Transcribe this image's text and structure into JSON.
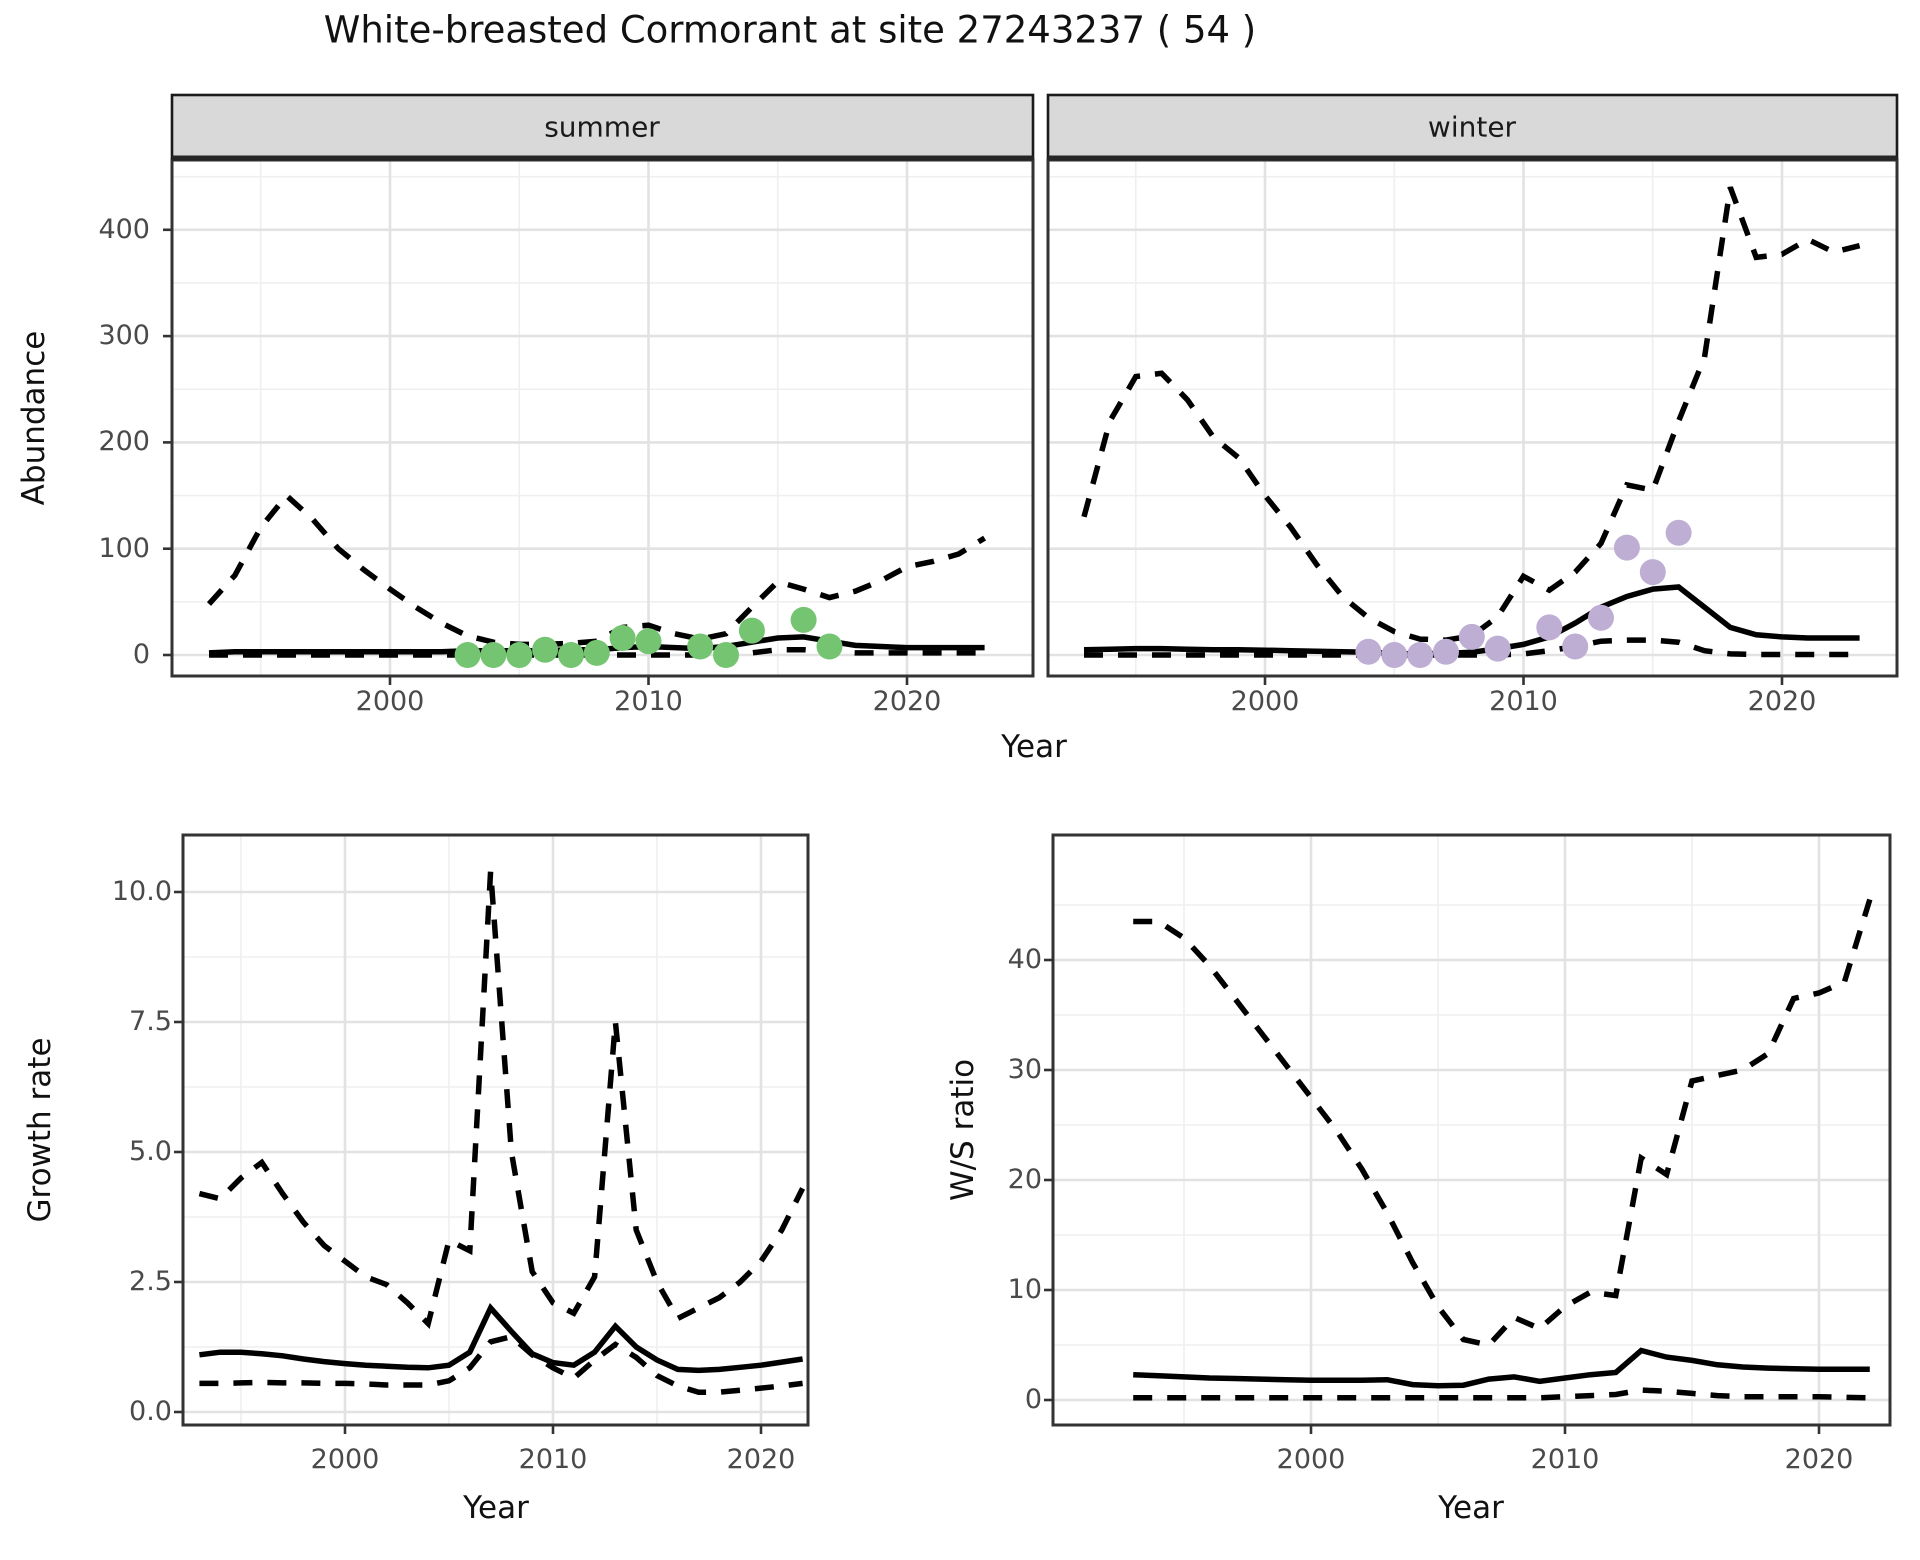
{
  "title": "White-breasted Cormorant at site 27243237 ( 54 )",
  "facets": [
    "summer",
    "winter"
  ],
  "axes": {
    "x_label": "Year",
    "y_abundance": "Abundance",
    "y_growth": "Growth rate",
    "y_ws": "W/S ratio",
    "x_ticks": [
      "2000",
      "2010",
      "2020"
    ],
    "abundance_ticks": [
      "0",
      "100",
      "200",
      "300",
      "400"
    ],
    "growth_ticks": [
      "0.0",
      "2.5",
      "5.0",
      "7.5",
      "10.0"
    ],
    "ws_ticks": [
      "0",
      "10",
      "20",
      "30",
      "40"
    ]
  },
  "colors": {
    "summer_points": "#74c471",
    "winter_points": "#beaed4",
    "line": "#000000",
    "grid_major": "#e2e2e2",
    "grid_minor": "#efefef",
    "strip_bg": "#d9d9d9",
    "panel_border": "#333333",
    "axis_text": "#4a4a4a"
  },
  "chart_data": [
    {
      "type": "line",
      "panel": "summer",
      "facet": "summer",
      "xlabel": "Year",
      "ylabel": "Abundance",
      "ylim": [
        0,
        460
      ],
      "x": [
        1993,
        1994,
        1995,
        1996,
        1997,
        1998,
        1999,
        2000,
        2001,
        2002,
        2003,
        2004,
        2005,
        2006,
        2007,
        2008,
        2009,
        2010,
        2011,
        2012,
        2013,
        2014,
        2015,
        2016,
        2017,
        2018,
        2019,
        2020,
        2021,
        2022,
        2023
      ],
      "series": [
        {
          "name": "upper-ci",
          "style": "dashed",
          "values": [
            48,
            75,
            120,
            150,
            128,
            100,
            80,
            62,
            45,
            30,
            18,
            12,
            10,
            10,
            11,
            13,
            26,
            28,
            20,
            15,
            20,
            45,
            69,
            62,
            54,
            60,
            70,
            83,
            88,
            95,
            110
          ]
        },
        {
          "name": "median",
          "style": "solid",
          "values": [
            2,
            3,
            3,
            3,
            3,
            3,
            3,
            3,
            3,
            3,
            4,
            4,
            4,
            4,
            5,
            5,
            7,
            8,
            7,
            6,
            8,
            12,
            16,
            17,
            13,
            9,
            8,
            7,
            7,
            7,
            7
          ]
        },
        {
          "name": "lower-ci",
          "style": "dashed",
          "values": [
            0,
            0,
            0,
            0,
            0,
            0,
            0,
            0,
            0,
            0,
            0,
            0,
            0,
            0,
            0,
            0,
            0,
            0,
            0,
            0,
            0,
            2,
            5,
            5,
            3,
            2,
            2,
            2,
            2,
            2,
            2
          ]
        }
      ],
      "points": {
        "name": "observed-counts",
        "color": "#74c471",
        "x": [
          2003,
          2004,
          2005,
          2006,
          2007,
          2008,
          2009,
          2010,
          2012,
          2013,
          2014,
          2016,
          2017
        ],
        "y": [
          0,
          0,
          0,
          5,
          0,
          2,
          16,
          13,
          8,
          0,
          23,
          33,
          8
        ]
      }
    },
    {
      "type": "line",
      "panel": "winter",
      "facet": "winter",
      "xlabel": "Year",
      "ylabel": "Abundance",
      "ylim": [
        0,
        460
      ],
      "x": [
        1993,
        1994,
        1995,
        1996,
        1997,
        1998,
        1999,
        2000,
        2001,
        2002,
        2003,
        2004,
        2005,
        2006,
        2007,
        2008,
        2009,
        2010,
        2011,
        2012,
        2013,
        2014,
        2015,
        2016,
        2017,
        2018,
        2019,
        2020,
        2021,
        2022,
        2023
      ],
      "series": [
        {
          "name": "upper-ci",
          "style": "dashed",
          "values": [
            130,
            220,
            262,
            265,
            240,
            205,
            185,
            150,
            120,
            85,
            55,
            35,
            22,
            15,
            14,
            18,
            36,
            74,
            61,
            78,
            105,
            160,
            155,
            220,
            280,
            440,
            374,
            377,
            391,
            379,
            385
          ]
        },
        {
          "name": "median",
          "style": "solid",
          "values": [
            5,
            5.5,
            6,
            6,
            5.5,
            5,
            5,
            4.5,
            4,
            3.5,
            3,
            2.5,
            1.5,
            1,
            1.5,
            2.5,
            6,
            10,
            17,
            30,
            45,
            55,
            62,
            64,
            45,
            26,
            19,
            17,
            16,
            16,
            16
          ]
        },
        {
          "name": "lower-ci",
          "style": "dashed",
          "values": [
            0,
            0,
            0,
            0,
            0,
            0,
            0,
            0,
            0,
            0,
            0,
            0,
            0,
            0,
            0,
            0,
            0,
            1,
            4,
            8,
            13,
            14,
            14,
            12,
            4,
            1,
            0.5,
            0.5,
            0.5,
            0.5,
            0.5
          ]
        }
      ],
      "points": {
        "name": "observed-counts",
        "color": "#beaed4",
        "x": [
          2004,
          2005,
          2006,
          2007,
          2008,
          2009,
          2011,
          2012,
          2013,
          2014,
          2015,
          2016
        ],
        "y": [
          3,
          0,
          0,
          3,
          17,
          6,
          26,
          8,
          35,
          101,
          78,
          115
        ]
      }
    },
    {
      "type": "line",
      "panel": "growth",
      "xlabel": "Year",
      "ylabel": "Growth rate",
      "ylim": [
        0,
        11
      ],
      "x": [
        1993,
        1994,
        1995,
        1996,
        1997,
        1998,
        1999,
        2000,
        2001,
        2002,
        2003,
        2004,
        2005,
        2006,
        2007,
        2008,
        2009,
        2010,
        2011,
        2012,
        2013,
        2014,
        2015,
        2016,
        2017,
        2018,
        2019,
        2020,
        2021,
        2022
      ],
      "series": [
        {
          "name": "upper-ci",
          "style": "dashed",
          "values": [
            4.2,
            4.1,
            4.5,
            4.8,
            4.2,
            3.65,
            3.2,
            2.9,
            2.6,
            2.45,
            2.1,
            1.7,
            3.3,
            3.1,
            10.4,
            5.0,
            2.7,
            2.1,
            1.9,
            2.6,
            7.5,
            3.5,
            2.5,
            1.8,
            2.0,
            2.2,
            2.5,
            2.9,
            3.5,
            4.3
          ]
        },
        {
          "name": "median",
          "style": "solid",
          "values": [
            1.1,
            1.15,
            1.15,
            1.12,
            1.08,
            1.02,
            0.97,
            0.93,
            0.9,
            0.88,
            0.86,
            0.85,
            0.9,
            1.15,
            2.0,
            1.55,
            1.12,
            0.95,
            0.9,
            1.15,
            1.65,
            1.25,
            1.0,
            0.82,
            0.8,
            0.82,
            0.86,
            0.9,
            0.96,
            1.02
          ]
        },
        {
          "name": "lower-ci",
          "style": "dashed",
          "values": [
            0.55,
            0.55,
            0.56,
            0.57,
            0.56,
            0.56,
            0.55,
            0.55,
            0.54,
            0.52,
            0.52,
            0.52,
            0.6,
            0.85,
            1.35,
            1.45,
            1.1,
            0.85,
            0.65,
            1.0,
            1.3,
            1.05,
            0.7,
            0.5,
            0.38,
            0.38,
            0.42,
            0.46,
            0.5,
            0.55
          ]
        }
      ]
    },
    {
      "type": "line",
      "panel": "ws",
      "xlabel": "Year",
      "ylabel": "W/S ratio",
      "ylim": [
        0,
        48
      ],
      "x": [
        1993,
        1994,
        1995,
        1996,
        1997,
        1998,
        1999,
        2000,
        2001,
        2002,
        2003,
        2004,
        2005,
        2006,
        2007,
        2008,
        2009,
        2010,
        2011,
        2012,
        2013,
        2014,
        2015,
        2016,
        2017,
        2018,
        2019,
        2020,
        2021,
        2022
      ],
      "series": [
        {
          "name": "upper-ci",
          "style": "dashed",
          "values": [
            43.5,
            43.5,
            42,
            39.5,
            36.5,
            33.5,
            30.5,
            27.5,
            24.5,
            21,
            17,
            12.5,
            8.5,
            5.5,
            5,
            7.5,
            6.5,
            8.5,
            9.8,
            9.5,
            22,
            20.5,
            29,
            29.5,
            30,
            31.5,
            36.5,
            37,
            38,
            45.5
          ]
        },
        {
          "name": "median",
          "style": "solid",
          "values": [
            2.3,
            2.2,
            2.1,
            2.0,
            1.95,
            1.9,
            1.85,
            1.8,
            1.8,
            1.8,
            1.85,
            1.4,
            1.3,
            1.35,
            1.9,
            2.1,
            1.7,
            2.0,
            2.3,
            2.5,
            4.5,
            3.9,
            3.6,
            3.2,
            3.0,
            2.9,
            2.85,
            2.8,
            2.8,
            2.8
          ]
        },
        {
          "name": "lower-ci",
          "style": "dashed",
          "values": [
            0.2,
            0.2,
            0.2,
            0.2,
            0.2,
            0.2,
            0.2,
            0.2,
            0.2,
            0.2,
            0.2,
            0.2,
            0.2,
            0.2,
            0.2,
            0.2,
            0.2,
            0.3,
            0.4,
            0.5,
            0.9,
            0.8,
            0.6,
            0.4,
            0.3,
            0.3,
            0.3,
            0.3,
            0.25,
            0.2
          ]
        }
      ]
    }
  ]
}
